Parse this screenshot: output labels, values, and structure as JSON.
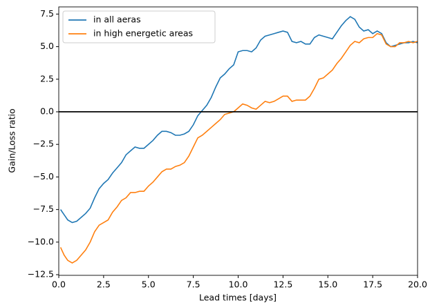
{
  "chart_data": {
    "type": "line",
    "xlabel": "Lead times [days]",
    "ylabel": "Gain/Loss ratio",
    "x": [
      0.1,
      0.3,
      0.5,
      0.75,
      1.0,
      1.25,
      1.5,
      1.75,
      2.0,
      2.25,
      2.5,
      2.75,
      3.0,
      3.25,
      3.5,
      3.75,
      4.0,
      4.25,
      4.5,
      4.75,
      5.0,
      5.25,
      5.5,
      5.75,
      6.0,
      6.25,
      6.5,
      6.75,
      7.0,
      7.25,
      7.5,
      7.75,
      8.0,
      8.25,
      8.5,
      8.75,
      9.0,
      9.25,
      9.5,
      9.75,
      10.0,
      10.25,
      10.5,
      10.75,
      11.0,
      11.25,
      11.5,
      11.75,
      12.0,
      12.25,
      12.5,
      12.75,
      13.0,
      13.25,
      13.5,
      13.75,
      14.0,
      14.25,
      14.5,
      14.75,
      15.0,
      15.25,
      15.5,
      15.75,
      16.0,
      16.25,
      16.5,
      16.75,
      17.0,
      17.25,
      17.5,
      17.75,
      18.0,
      18.25,
      18.5,
      18.75,
      19.0,
      19.25,
      19.5,
      19.75,
      20.0
    ],
    "series": [
      {
        "name": "in all aeras",
        "color": "#1f77b4",
        "values": [
          -7.5,
          -7.9,
          -8.3,
          -8.5,
          -8.4,
          -8.1,
          -7.8,
          -7.4,
          -6.6,
          -5.9,
          -5.5,
          -5.2,
          -4.7,
          -4.3,
          -3.9,
          -3.3,
          -3.0,
          -2.7,
          -2.8,
          -2.8,
          -2.5,
          -2.2,
          -1.8,
          -1.5,
          -1.5,
          -1.6,
          -1.8,
          -1.8,
          -1.7,
          -1.5,
          -1.0,
          -0.3,
          0.1,
          0.5,
          1.1,
          1.9,
          2.6,
          2.9,
          3.3,
          3.6,
          4.6,
          4.7,
          4.7,
          4.6,
          4.9,
          5.5,
          5.8,
          5.9,
          6.0,
          6.1,
          6.2,
          6.1,
          5.4,
          5.3,
          5.4,
          5.2,
          5.2,
          5.7,
          5.9,
          5.8,
          5.7,
          5.6,
          6.1,
          6.6,
          7.0,
          7.3,
          7.1,
          6.5,
          6.2,
          6.3,
          6.0,
          6.2,
          6.0,
          5.3,
          5.0,
          5.1,
          5.2,
          5.3,
          5.3,
          5.4,
          5.3
        ]
      },
      {
        "name": "in high energetic areas",
        "color": "#ff7f0e",
        "values": [
          -10.4,
          -11.0,
          -11.4,
          -11.6,
          -11.4,
          -11.0,
          -10.6,
          -10.0,
          -9.2,
          -8.7,
          -8.5,
          -8.3,
          -7.7,
          -7.3,
          -6.8,
          -6.6,
          -6.2,
          -6.2,
          -6.1,
          -6.1,
          -5.7,
          -5.4,
          -5.0,
          -4.6,
          -4.4,
          -4.4,
          -4.2,
          -4.1,
          -3.9,
          -3.4,
          -2.7,
          -2.0,
          -1.8,
          -1.5,
          -1.2,
          -0.9,
          -0.6,
          -0.2,
          -0.1,
          0.0,
          0.3,
          0.6,
          0.5,
          0.3,
          0.2,
          0.5,
          0.8,
          0.7,
          0.8,
          1.0,
          1.2,
          1.2,
          0.8,
          0.9,
          0.9,
          0.9,
          1.2,
          1.8,
          2.5,
          2.6,
          2.9,
          3.2,
          3.7,
          4.1,
          4.6,
          5.1,
          5.4,
          5.3,
          5.6,
          5.7,
          5.7,
          6.0,
          5.9,
          5.2,
          5.0,
          5.0,
          5.3,
          5.3,
          5.4,
          5.3,
          5.4
        ]
      }
    ],
    "xlim": [
      0,
      20
    ],
    "ylim": [
      -12.55,
      8.05
    ],
    "xticks": [
      {
        "value": 0,
        "label": "0.0"
      },
      2.5,
      {
        "value": 5,
        "label": "5.0"
      },
      7.5,
      {
        "value": 10,
        "label": "10.0"
      },
      12.5,
      {
        "value": 15,
        "label": "15.0"
      },
      17.5,
      {
        "value": 20,
        "label": "20.0"
      }
    ],
    "yticks": [
      {
        "value": -12.5,
        "label": "−12.5"
      },
      {
        "value": -10,
        "label": "−10.0"
      },
      {
        "value": -7.5,
        "label": "−7.5"
      },
      {
        "value": -5,
        "label": "−5.0"
      },
      {
        "value": -2.5,
        "label": "−2.5"
      },
      {
        "value": 0,
        "label": "0.0"
      },
      2.5,
      {
        "value": 5,
        "label": "5.0"
      },
      7.5
    ],
    "hline": {
      "value": 0,
      "color": "#000000"
    },
    "legend": "upper left"
  }
}
